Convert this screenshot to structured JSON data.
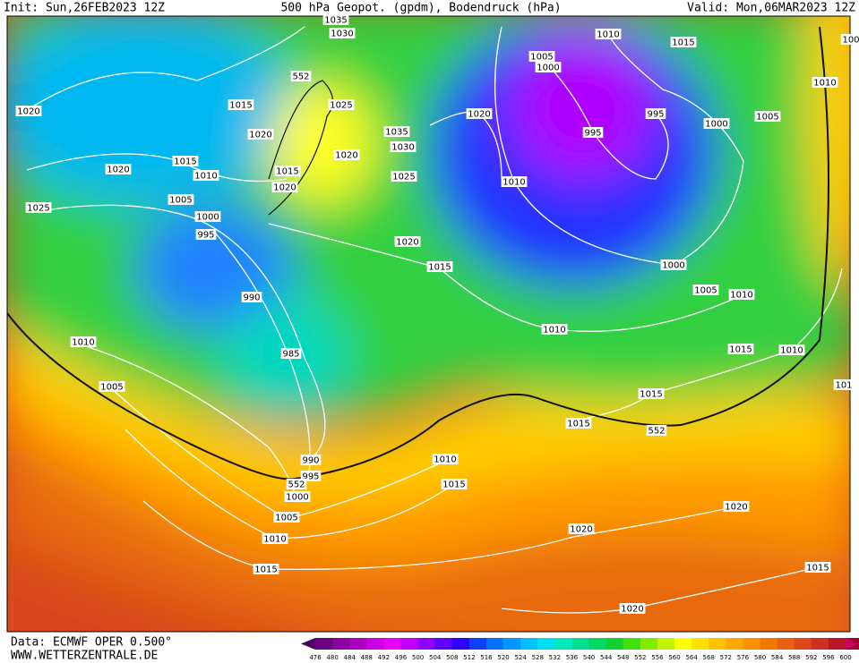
{
  "header": {
    "init": "Init: Sun,26FEB2023 12Z",
    "title": "500 hPa Geopot. (gpdm), Bodendruck (hPa)",
    "valid": "Valid: Mon,06MAR2023 12Z"
  },
  "footer": {
    "data": "Data: ECMWF OPER 0.500°",
    "site": "WWW.WETTERZENTRALE.DE"
  },
  "colorbar": {
    "labels": [
      476,
      480,
      484,
      488,
      492,
      496,
      500,
      504,
      508,
      512,
      516,
      520,
      524,
      528,
      532,
      536,
      540,
      544,
      548,
      552,
      556,
      560,
      564,
      568,
      572,
      576,
      580,
      584,
      588,
      592,
      596,
      600
    ],
    "colors": [
      "#4a0060",
      "#6a0080",
      "#8a00a0",
      "#aa00c0",
      "#cc00e0",
      "#e800f8",
      "#c000ff",
      "#9000ff",
      "#6000ff",
      "#3000ff",
      "#1040ff",
      "#0070ff",
      "#0098ff",
      "#00c0ff",
      "#00e0f0",
      "#00e8c0",
      "#00e090",
      "#00d860",
      "#10d030",
      "#40e010",
      "#80ec00",
      "#c0f400",
      "#ffff00",
      "#ffe000",
      "#ffc400",
      "#ffa800",
      "#ff9000",
      "#f47800",
      "#e86010",
      "#dc4818",
      "#cc3020",
      "#b81828",
      "#a00030",
      "#d00060"
    ]
  },
  "isobars": {
    "labels": [
      1035,
      1030,
      1015,
      1010,
      1005,
      1000,
      552,
      1025,
      1020,
      1015,
      1020,
      1035,
      1030,
      1020,
      1015,
      1020,
      1010,
      1015,
      1020,
      1025,
      1005,
      1025,
      1000,
      995,
      1020,
      1015,
      990,
      985,
      1010,
      1005,
      990,
      995,
      552,
      1000,
      1005,
      1010,
      1015,
      1010,
      1015,
      1020,
      1010,
      995,
      995,
      1000,
      1005,
      1010,
      1000,
      1005,
      1010,
      1010,
      1015,
      1010,
      1015,
      1015,
      552,
      1020,
      1020,
      1015,
      1020,
      101,
      100
    ]
  }
}
